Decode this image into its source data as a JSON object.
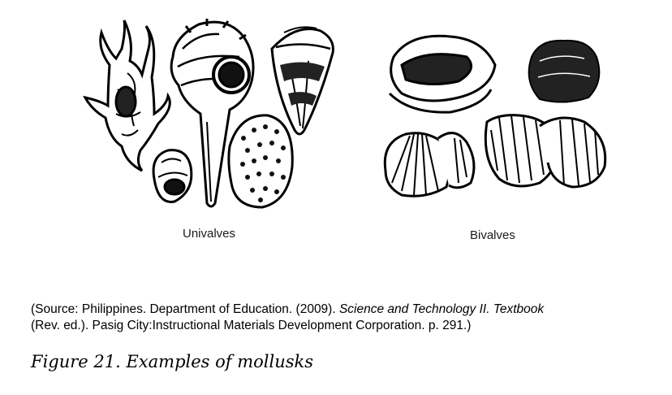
{
  "figure": {
    "groups": [
      {
        "label": "Univalves"
      },
      {
        "label": "Bivalves"
      }
    ],
    "source": {
      "prefix": "(Source: Philippines. Department of Education. (2009). ",
      "title": "Science and Technology II. Textbook",
      "line2": "(Rev. ed.).  Pasig City:Instructional Materials Development Corporation. p. 291.)"
    },
    "caption": "Figure 21. Examples of mollusks"
  },
  "colors": {
    "ink": "#000000",
    "paper": "#ffffff"
  }
}
